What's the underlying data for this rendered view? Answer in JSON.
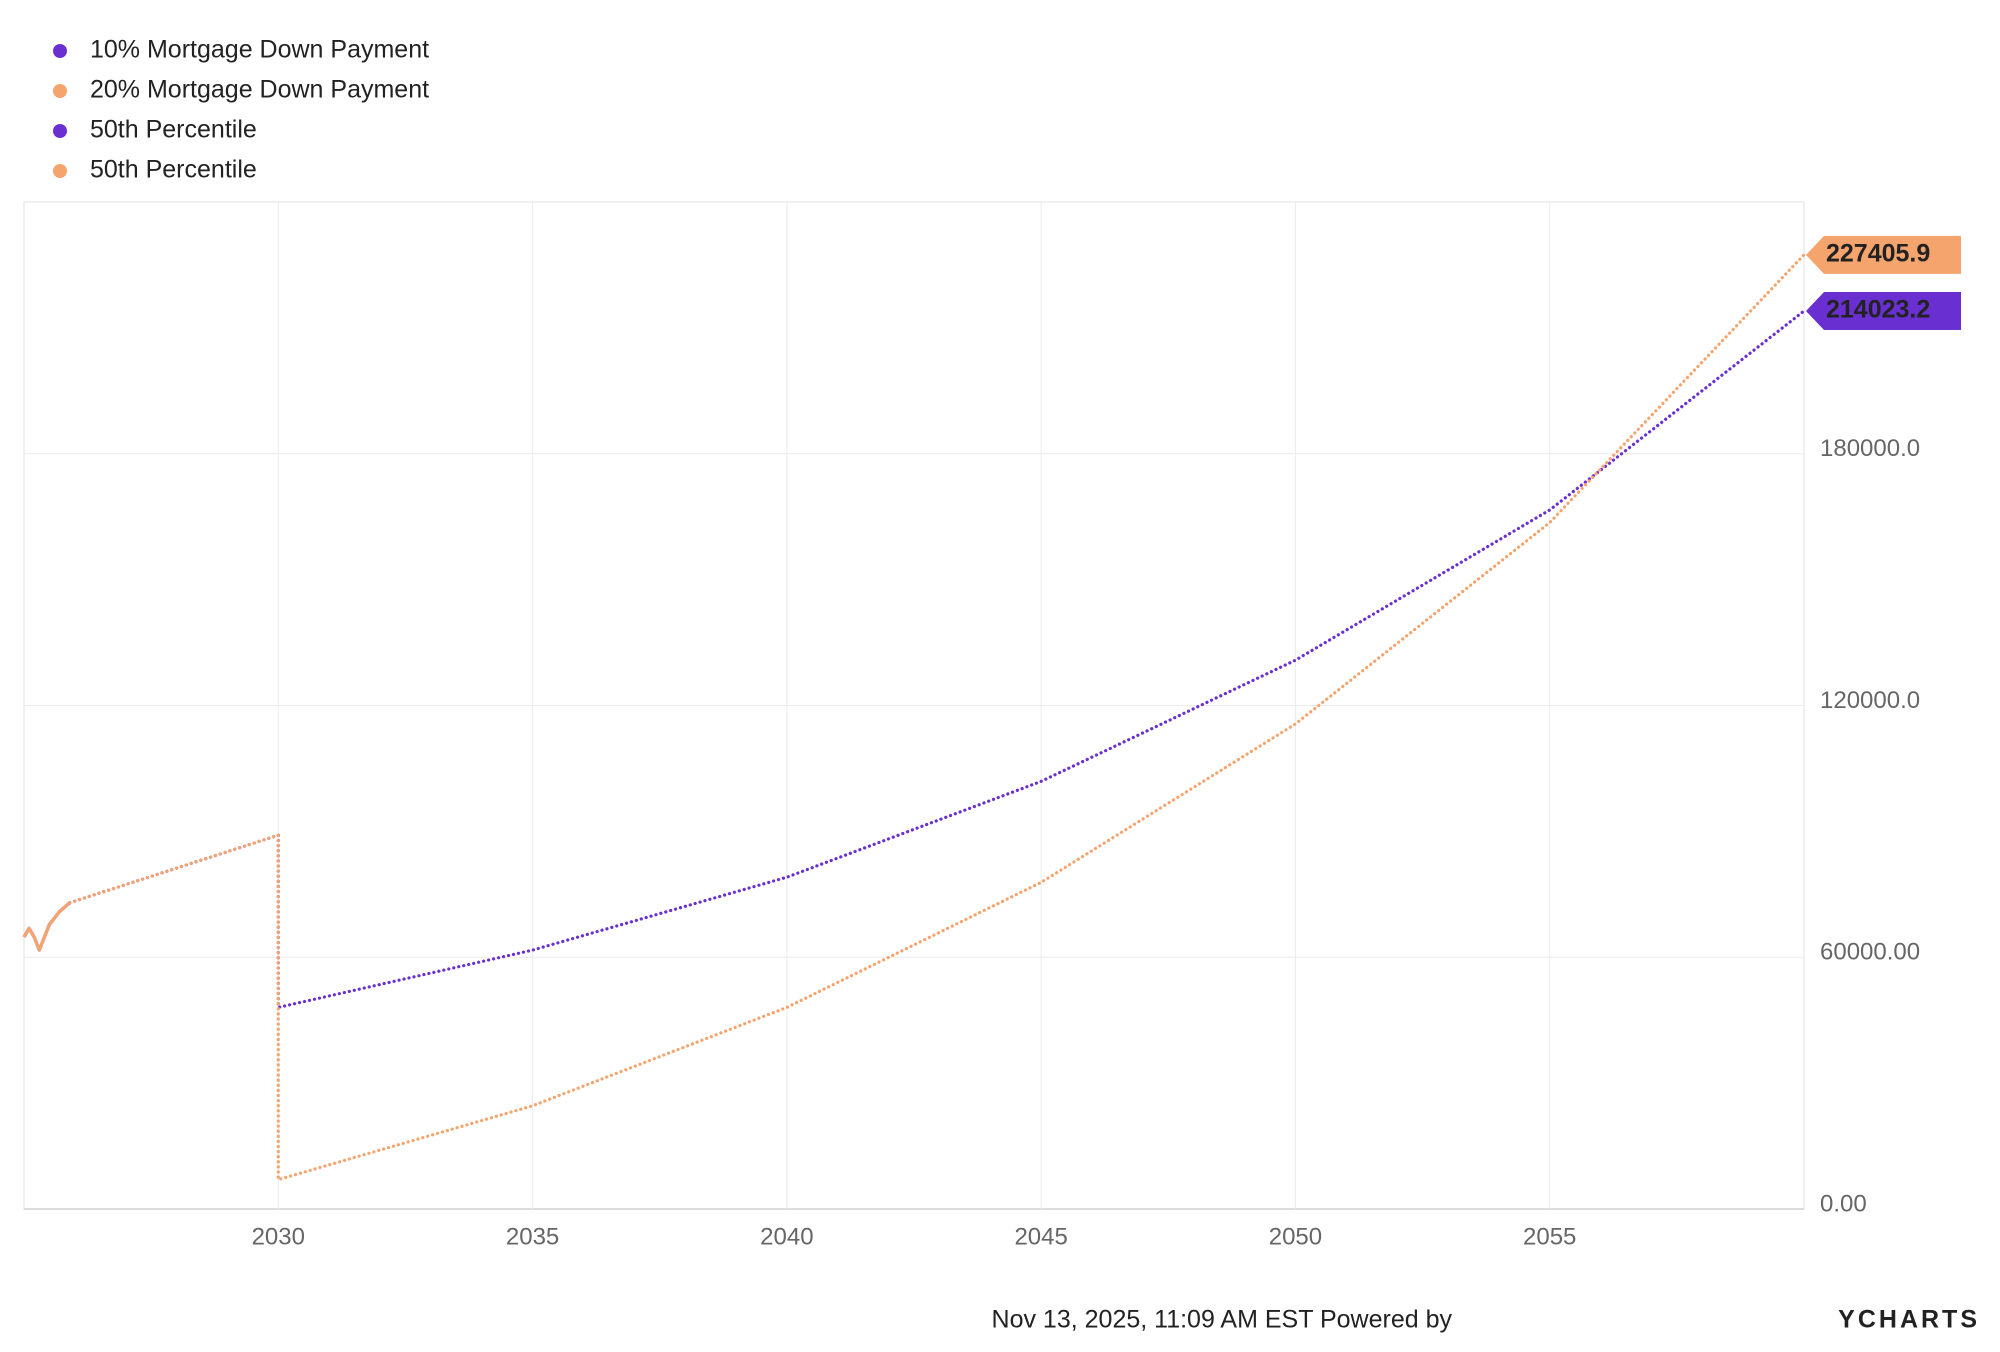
{
  "chart_data": {
    "type": "line",
    "series": [
      {
        "name": "10% Mortgage Down Payment",
        "color": "#6a2fd1",
        "style": "solid",
        "x": [
          2025.0,
          2025.1,
          2025.2,
          2025.3,
          2025.5,
          2025.7,
          2025.9
        ],
        "values": [
          64800,
          66900,
          64800,
          61700,
          67800,
          70900,
          73000
        ]
      },
      {
        "name": "20% Mortgage Down Payment",
        "color": "#f6a46e",
        "style": "solid",
        "x": [
          2025.0,
          2025.1,
          2025.2,
          2025.3,
          2025.5,
          2025.7,
          2025.9
        ],
        "values": [
          64800,
          66900,
          64800,
          61700,
          67800,
          70900,
          73000
        ]
      },
      {
        "name": "50th Percentile",
        "color": "#6a2fd1",
        "style": "dotted",
        "x": [
          2025.9,
          2030,
          2030,
          2035,
          2040,
          2045,
          2050,
          2055,
          2060
        ],
        "values": [
          73000,
          89100,
          48050,
          61700,
          79070,
          101900,
          130800,
          166600,
          214023.2
        ]
      },
      {
        "name": "50th Percentile",
        "color": "#f6a46e",
        "style": "dotted",
        "x": [
          2025.9,
          2030,
          2030,
          2035,
          2040,
          2045,
          2050,
          2055,
          2060
        ],
        "values": [
          73000,
          89100,
          7000,
          24600,
          48050,
          77850,
          115600,
          163600,
          227405.9
        ]
      }
    ],
    "xlim": [
      2025,
      2060
    ],
    "xticks": [
      2030,
      2035,
      2040,
      2045,
      2050,
      2055
    ],
    "ylim": [
      0,
      240000
    ],
    "yticks": [
      {
        "value": 0,
        "label": "0.00"
      },
      {
        "value": 60000,
        "label": "60000.00"
      },
      {
        "value": 120000,
        "label": "120000.0"
      },
      {
        "value": 180000,
        "label": "180000.0"
      }
    ],
    "grid": true,
    "legend": "top-left",
    "end_labels": true
  },
  "footer": {
    "timestamp": "Nov 13, 2025, 11:09 AM EST Powered by",
    "brand": "YCHARTS"
  }
}
